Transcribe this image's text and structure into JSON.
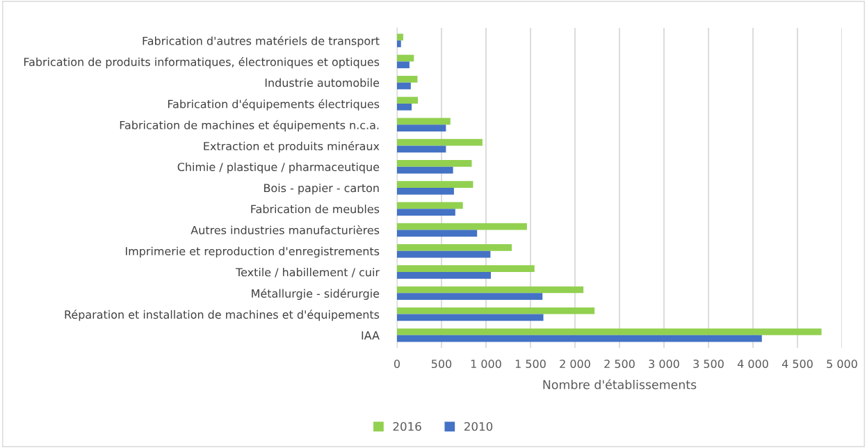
{
  "chart_data": {
    "type": "bar",
    "orientation": "horizontal",
    "xlabel": "Nombre d'établissements",
    "categories": [
      "Fabrication d'autres matériels de transport",
      "Fabrication de produits informatiques, électroniques et optiques",
      "Industrie automobile",
      "Fabrication d'équipements électriques",
      "Fabrication de machines et équipements n.c.a.",
      "Extraction et produits minéraux",
      "Chimie / plastique / pharmaceutique",
      "Bois - papier - carton",
      "Fabrication de meubles",
      "Autres industries manufacturières",
      "Imprimerie et reproduction d'enregistrements",
      "Textile / habillement / cuir",
      "Métallurgie - sidérurgie",
      "Réparation et installation de machines et d'équipements",
      "IAA"
    ],
    "series": [
      {
        "name": "2016",
        "color": "#92d050",
        "values": [
          70,
          190,
          230,
          235,
          600,
          960,
          840,
          855,
          740,
          1460,
          1290,
          1545,
          2095,
          2220,
          4770
        ]
      },
      {
        "name": "2010",
        "color": "#4472c4",
        "values": [
          45,
          140,
          155,
          165,
          550,
          550,
          630,
          640,
          655,
          900,
          1050,
          1055,
          1635,
          1645,
          4100
        ]
      }
    ],
    "xlim": [
      0,
      5000
    ],
    "xticks": [
      0,
      {
        "value": 500,
        "label": "500"
      },
      {
        "value": 1000,
        "label": "1 000"
      },
      {
        "value": 1500,
        "label": "1 500"
      },
      {
        "value": 2000,
        "label": "2 000"
      },
      {
        "value": 2500,
        "label": "2 500"
      },
      {
        "value": 3000,
        "label": "3 000"
      },
      {
        "value": 3500,
        "label": "3 500"
      },
      {
        "value": 4000,
        "label": "4 000"
      },
      {
        "value": 4500,
        "label": "4 500"
      },
      {
        "value": 5000,
        "label": "5 000"
      }
    ],
    "grid": "x",
    "legend": "bottom"
  }
}
